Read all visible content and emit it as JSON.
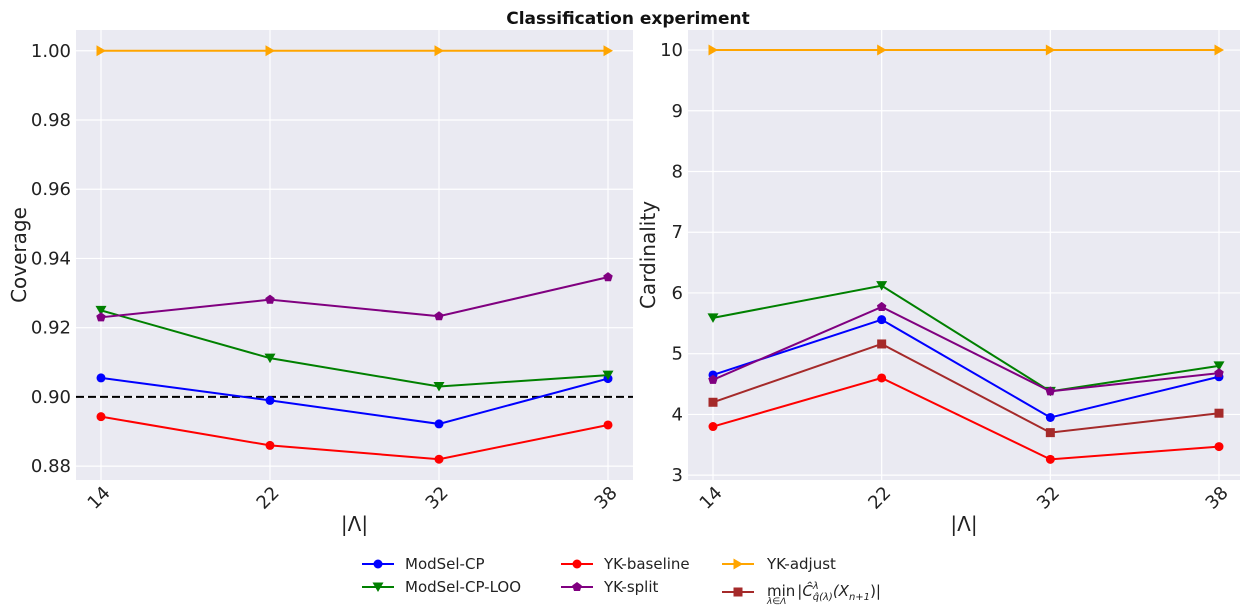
{
  "figure_title": "Classification experiment",
  "chart_data": [
    {
      "type": "line",
      "title": "",
      "xlabel": "|Λ|",
      "ylabel": "Coverage",
      "categories": [
        "14",
        "22",
        "32",
        "38"
      ],
      "ylim": [
        0.876,
        1.006
      ],
      "yticks": [
        0.88,
        0.9,
        0.92,
        0.94,
        0.96,
        0.98,
        1.0
      ],
      "ytick_labels": [
        "0.88",
        "0.90",
        "0.92",
        "0.94",
        "0.96",
        "0.98",
        "1.00"
      ],
      "grid": true,
      "reference_line": {
        "y": 0.9,
        "style": "dashed",
        "color": "#000000"
      },
      "series": [
        {
          "name": "ModSel-CP",
          "color": "#0000ff",
          "marker": "circle",
          "values": [
            0.9055,
            0.899,
            0.8922,
            0.9053
          ]
        },
        {
          "name": "ModSel-CP-LOO",
          "color": "#008000",
          "marker": "triangle-down",
          "values": [
            0.925,
            0.9112,
            0.903,
            0.9063
          ]
        },
        {
          "name": "YK-baseline",
          "color": "#ff0000",
          "marker": "circle",
          "values": [
            0.8943,
            0.886,
            0.882,
            0.8919
          ]
        },
        {
          "name": "YK-split",
          "color": "#800080",
          "marker": "pentagon",
          "values": [
            0.923,
            0.9281,
            0.9233,
            0.9346
          ]
        },
        {
          "name": "YK-adjust",
          "color": "#ffa500",
          "marker": "triangle-right",
          "values": [
            1.0,
            1.0,
            1.0,
            1.0
          ]
        }
      ]
    },
    {
      "type": "line",
      "title": "",
      "xlabel": "|Λ|",
      "ylabel": "Cardinality",
      "categories": [
        "14",
        "22",
        "32",
        "38"
      ],
      "ylim": [
        2.92,
        10.33
      ],
      "yticks": [
        3,
        4,
        5,
        6,
        7,
        8,
        9,
        10
      ],
      "ytick_labels": [
        "3",
        "4",
        "5",
        "6",
        "7",
        "8",
        "9",
        "10"
      ],
      "grid": true,
      "series": [
        {
          "name": "ModSel-CP",
          "color": "#0000ff",
          "marker": "circle",
          "values": [
            4.65,
            5.56,
            3.95,
            4.62
          ]
        },
        {
          "name": "ModSel-CP-LOO",
          "color": "#008000",
          "marker": "triangle-down",
          "values": [
            5.59,
            6.12,
            4.38,
            4.8
          ]
        },
        {
          "name": "YK-baseline",
          "color": "#ff0000",
          "marker": "circle",
          "values": [
            3.8,
            4.6,
            3.26,
            3.47
          ]
        },
        {
          "name": "YK-split",
          "color": "#800080",
          "marker": "pentagon",
          "values": [
            4.57,
            5.77,
            4.38,
            4.68
          ]
        },
        {
          "name": "YK-adjust",
          "color": "#ffa500",
          "marker": "triangle-right",
          "values": [
            10.0,
            10.0,
            10.0,
            10.0
          ]
        },
        {
          "name": "min_{λ∈Λ}|Ĉ^λ_{q̂(λ)}(X_{n+1})|",
          "color": "#a52a2a",
          "marker": "square",
          "values": [
            4.2,
            5.16,
            3.7,
            4.02
          ]
        }
      ]
    }
  ],
  "legend": {
    "placement": "bottom-center",
    "items": [
      {
        "label": "ModSel-CP",
        "color": "#0000ff",
        "marker": "circle"
      },
      {
        "label": "ModSel-CP-LOO",
        "color": "#008000",
        "marker": "triangle-down"
      },
      {
        "label": "YK-baseline",
        "color": "#ff0000",
        "marker": "circle"
      },
      {
        "label": "YK-split",
        "color": "#800080",
        "marker": "pentagon"
      },
      {
        "label": "YK-adjust",
        "color": "#ffa500",
        "marker": "triangle-right"
      },
      {
        "label": "min",
        "label_sub": "λ∈Λ",
        "label_expr": "|Ĉ",
        "label_sup": "λ",
        "label_sub2": "q̂(λ)",
        "label_tail": "(X",
        "label_sub3": "n+1",
        "label_end": ")|",
        "color": "#a52a2a",
        "marker": "square"
      }
    ]
  }
}
